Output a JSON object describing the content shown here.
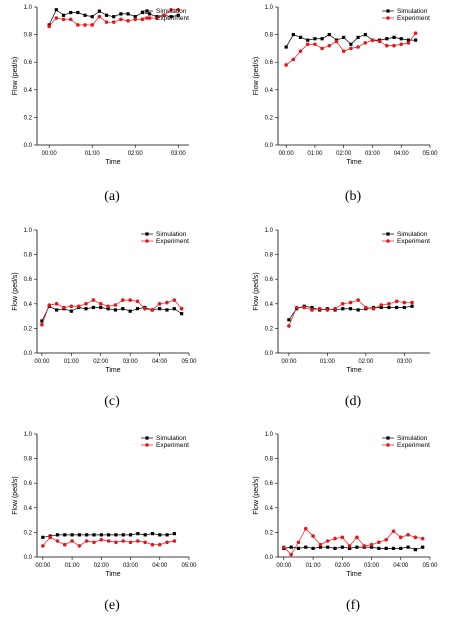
{
  "figure": {
    "colors": {
      "simulation": "#000000",
      "experiment": "#e8151b",
      "axis": "#000000"
    }
  },
  "chart_data": [
    {
      "type": "line",
      "caption": "(a)",
      "xlabel": "Time",
      "ylabel": "Flow (ped/s)",
      "xlim": [
        "-00:17",
        "03:15"
      ],
      "ylim": [
        0,
        1.0
      ],
      "xticks": [
        "00:00",
        "01:00",
        "02:00",
        "03:00"
      ],
      "yticks": [
        "0.0",
        "0.2",
        "0.4",
        "0.6",
        "0.8",
        "1.0"
      ],
      "legend": "top-right",
      "grid": false,
      "series": [
        {
          "name": "Simulation",
          "marker": "square",
          "x": [
            "00:00",
            "00:10",
            "00:20",
            "00:30",
            "00:40",
            "00:50",
            "01:00",
            "01:10",
            "01:20",
            "01:30",
            "01:40",
            "01:50",
            "02:00",
            "02:10",
            "02:20",
            "02:30",
            "02:40",
            "02:50",
            "03:00"
          ],
          "values": [
            0.87,
            0.98,
            0.94,
            0.96,
            0.96,
            0.94,
            0.93,
            0.97,
            0.94,
            0.93,
            0.95,
            0.95,
            0.93,
            0.96,
            0.95,
            0.93,
            0.94,
            0.93,
            0.94
          ]
        },
        {
          "name": "Experiment",
          "marker": "circle",
          "x": [
            "00:00",
            "00:10",
            "00:20",
            "00:30",
            "00:40",
            "00:50",
            "01:00",
            "01:10",
            "01:20",
            "01:30",
            "01:40",
            "01:50",
            "02:00",
            "02:10",
            "02:20",
            "02:30",
            "02:40",
            "02:50",
            "03:00"
          ],
          "values": [
            0.86,
            0.92,
            0.91,
            0.91,
            0.87,
            0.87,
            0.87,
            0.93,
            0.89,
            0.89,
            0.91,
            0.9,
            0.91,
            0.91,
            0.92,
            0.92,
            0.94,
            0.98,
            0.98
          ]
        }
      ]
    },
    {
      "type": "line",
      "caption": "(b)",
      "xlabel": "Time",
      "ylabel": "Flow (ped/s)",
      "xlim": [
        "-00:17",
        "05:00"
      ],
      "ylim": [
        0,
        1.0
      ],
      "xticks": [
        "00:00",
        "01:00",
        "02:00",
        "03:00",
        "04:00",
        "05:00"
      ],
      "yticks": [
        "0.0",
        "0.2",
        "0.4",
        "0.6",
        "0.8",
        "1.0"
      ],
      "legend": "top-right",
      "grid": false,
      "series": [
        {
          "name": "Simulation",
          "marker": "square",
          "x": [
            "00:00",
            "00:15",
            "00:30",
            "00:45",
            "01:00",
            "01:15",
            "01:30",
            "01:45",
            "02:00",
            "02:15",
            "02:30",
            "02:45",
            "03:00",
            "03:15",
            "03:30",
            "03:45",
            "04:00",
            "04:15",
            "04:30"
          ],
          "values": [
            0.71,
            0.8,
            0.78,
            0.76,
            0.77,
            0.77,
            0.8,
            0.76,
            0.78,
            0.73,
            0.78,
            0.8,
            0.76,
            0.76,
            0.77,
            0.78,
            0.77,
            0.76,
            0.76
          ]
        },
        {
          "name": "Experiment",
          "marker": "circle",
          "x": [
            "00:00",
            "00:15",
            "00:30",
            "00:45",
            "01:00",
            "01:15",
            "01:30",
            "01:45",
            "02:00",
            "02:15",
            "02:30",
            "02:45",
            "03:00",
            "03:15",
            "03:30",
            "03:45",
            "04:00",
            "04:15",
            "04:30"
          ],
          "values": [
            0.58,
            0.62,
            0.68,
            0.73,
            0.73,
            0.7,
            0.72,
            0.75,
            0.68,
            0.7,
            0.71,
            0.74,
            0.76,
            0.75,
            0.72,
            0.72,
            0.73,
            0.74,
            0.81
          ]
        }
      ]
    },
    {
      "type": "line",
      "caption": "(c)",
      "xlabel": "Time",
      "ylabel": "Flow (ped/s)",
      "xlim": [
        "-00:10",
        "05:00"
      ],
      "ylim": [
        0,
        1.0
      ],
      "xticks": [
        "00:00",
        "01:00",
        "02:00",
        "03:00",
        "04:00",
        "05:00"
      ],
      "yticks": [
        "0.0",
        "0.2",
        "0.4",
        "0.6",
        "0.8",
        "1.0"
      ],
      "legend": "top-right",
      "grid": false,
      "series": [
        {
          "name": "Simulation",
          "marker": "square",
          "x": [
            "00:00",
            "00:15",
            "00:30",
            "00:45",
            "01:00",
            "01:15",
            "01:30",
            "01:45",
            "02:00",
            "02:15",
            "02:30",
            "02:45",
            "03:00",
            "03:15",
            "03:30",
            "03:45",
            "04:00",
            "04:15",
            "04:30",
            "04:45"
          ],
          "values": [
            0.26,
            0.38,
            0.35,
            0.36,
            0.34,
            0.37,
            0.36,
            0.37,
            0.37,
            0.36,
            0.35,
            0.36,
            0.34,
            0.36,
            0.37,
            0.35,
            0.36,
            0.35,
            0.36,
            0.32
          ]
        },
        {
          "name": "Experiment",
          "marker": "circle",
          "x": [
            "00:00",
            "00:15",
            "00:30",
            "00:45",
            "01:00",
            "01:15",
            "01:30",
            "01:45",
            "02:00",
            "02:15",
            "02:30",
            "02:45",
            "03:00",
            "03:15",
            "03:30",
            "03:45",
            "04:00",
            "04:15",
            "04:30",
            "04:45"
          ],
          "values": [
            0.23,
            0.39,
            0.4,
            0.37,
            0.38,
            0.38,
            0.4,
            0.43,
            0.4,
            0.38,
            0.39,
            0.43,
            0.43,
            0.42,
            0.36,
            0.35,
            0.4,
            0.41,
            0.43,
            0.36
          ]
        }
      ]
    },
    {
      "type": "line",
      "caption": "(d)",
      "xlabel": "Time",
      "ylabel": "Flow (ped/s)",
      "xlim": [
        "-00:17",
        "03:40"
      ],
      "ylim": [
        0,
        1.0
      ],
      "xticks": [
        "00:00",
        "01:00",
        "02:00",
        "03:00"
      ],
      "yticks": [
        "0.0",
        "0.2",
        "0.4",
        "0.6",
        "0.8",
        "1.0"
      ],
      "legend": "top-right",
      "grid": false,
      "series": [
        {
          "name": "Simulation",
          "marker": "square",
          "x": [
            "00:00",
            "00:12",
            "00:24",
            "00:36",
            "00:48",
            "01:00",
            "01:12",
            "01:24",
            "01:36",
            "01:48",
            "02:00",
            "02:12",
            "02:24",
            "02:36",
            "02:48",
            "03:00",
            "03:12"
          ],
          "values": [
            0.27,
            0.36,
            0.38,
            0.37,
            0.35,
            0.36,
            0.35,
            0.36,
            0.36,
            0.35,
            0.36,
            0.37,
            0.37,
            0.37,
            0.37,
            0.37,
            0.38
          ]
        },
        {
          "name": "Experiment",
          "marker": "circle",
          "x": [
            "00:00",
            "00:12",
            "00:24",
            "00:36",
            "00:48",
            "01:00",
            "01:12",
            "01:24",
            "01:36",
            "01:48",
            "02:00",
            "02:12",
            "02:24",
            "02:36",
            "02:48",
            "03:00",
            "03:12"
          ],
          "values": [
            0.22,
            0.37,
            0.37,
            0.35,
            0.36,
            0.35,
            0.36,
            0.4,
            0.41,
            0.43,
            0.37,
            0.36,
            0.39,
            0.4,
            0.42,
            0.41,
            0.41
          ]
        }
      ]
    },
    {
      "type": "line",
      "caption": "(e)",
      "xlabel": "Time",
      "ylabel": "Flow (ped/s)",
      "xlim": [
        "-00:12",
        "05:00"
      ],
      "ylim": [
        0,
        1.0
      ],
      "xticks": [
        "00:00",
        "01:00",
        "02:00",
        "03:00",
        "04:00",
        "05:00"
      ],
      "yticks": [
        "0.0",
        "0.2",
        "0.4",
        "0.6",
        "0.8",
        "1.0"
      ],
      "legend": "top-right",
      "grid": false,
      "series": [
        {
          "name": "Simulation",
          "marker": "square",
          "x": [
            "00:00",
            "00:15",
            "00:30",
            "00:45",
            "01:00",
            "01:15",
            "01:30",
            "01:45",
            "02:00",
            "02:15",
            "02:30",
            "02:45",
            "03:00",
            "03:15",
            "03:30",
            "03:45",
            "04:00",
            "04:15",
            "04:30"
          ],
          "values": [
            0.16,
            0.17,
            0.18,
            0.18,
            0.18,
            0.18,
            0.18,
            0.18,
            0.18,
            0.18,
            0.18,
            0.18,
            0.18,
            0.19,
            0.18,
            0.19,
            0.18,
            0.18,
            0.19
          ]
        },
        {
          "name": "Experiment",
          "marker": "circle",
          "x": [
            "00:00",
            "00:15",
            "00:30",
            "00:45",
            "01:00",
            "01:15",
            "01:30",
            "01:45",
            "02:00",
            "02:15",
            "02:30",
            "02:45",
            "03:00",
            "03:15",
            "03:30",
            "03:45",
            "04:00",
            "04:15",
            "04:30"
          ],
          "values": [
            0.09,
            0.16,
            0.13,
            0.1,
            0.13,
            0.09,
            0.13,
            0.12,
            0.14,
            0.13,
            0.12,
            0.13,
            0.12,
            0.13,
            0.12,
            0.1,
            0.1,
            0.12,
            0.13
          ]
        }
      ]
    },
    {
      "type": "line",
      "caption": "(f)",
      "xlabel": "Time",
      "ylabel": "Flow (ped/s)",
      "xlim": [
        "-00:12",
        "05:00"
      ],
      "ylim": [
        0,
        1.0
      ],
      "xticks": [
        "00:00",
        "01:00",
        "02:00",
        "03:00",
        "04:00",
        "05:00"
      ],
      "yticks": [
        "0.0",
        "0.2",
        "0.4",
        "0.6",
        "0.8",
        "1.0"
      ],
      "legend": "top-right",
      "grid": false,
      "series": [
        {
          "name": "Simulation",
          "marker": "square",
          "x": [
            "00:00",
            "00:15",
            "00:30",
            "00:45",
            "01:00",
            "01:15",
            "01:30",
            "01:45",
            "02:00",
            "02:15",
            "02:30",
            "02:45",
            "03:00",
            "03:15",
            "03:30",
            "03:45",
            "04:00",
            "04:15",
            "04:30",
            "04:45"
          ],
          "values": [
            0.07,
            0.08,
            0.07,
            0.08,
            0.07,
            0.08,
            0.08,
            0.07,
            0.08,
            0.07,
            0.08,
            0.08,
            0.08,
            0.07,
            0.07,
            0.07,
            0.07,
            0.08,
            0.06,
            0.08
          ]
        },
        {
          "name": "Experiment",
          "marker": "circle",
          "x": [
            "00:00",
            "00:15",
            "00:30",
            "00:45",
            "01:00",
            "01:15",
            "01:30",
            "01:45",
            "02:00",
            "02:15",
            "02:30",
            "02:45",
            "03:00",
            "03:15",
            "03:30",
            "03:45",
            "04:00",
            "04:15",
            "04:30",
            "04:45"
          ],
          "values": [
            0.08,
            0.02,
            0.12,
            0.23,
            0.17,
            0.1,
            0.13,
            0.15,
            0.16,
            0.09,
            0.16,
            0.09,
            0.1,
            0.12,
            0.14,
            0.21,
            0.16,
            0.18,
            0.16,
            0.15
          ]
        }
      ]
    }
  ]
}
